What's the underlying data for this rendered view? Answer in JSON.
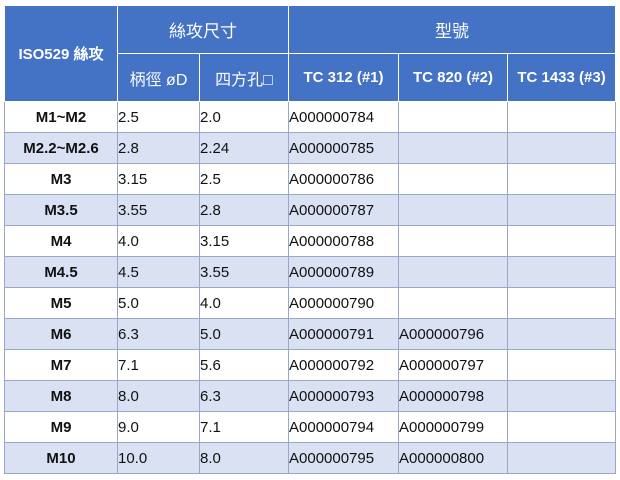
{
  "header": {
    "iso_label": "ISO529 絲攻",
    "tap_size_label": "絲攻尺寸",
    "model_label": "型號",
    "shank_dia_label": "柄徑 øD",
    "square_label": "四方孔□",
    "model_cols": [
      "TC 312 (#1)",
      "TC 820 (#2)",
      "TC 1433 (#3)"
    ]
  },
  "rows": [
    {
      "thread": "M1~M2",
      "shank": "2.5",
      "square": "2.0",
      "tc312": "A000000784",
      "tc820": "",
      "tc1433": ""
    },
    {
      "thread": "M2.2~M2.6",
      "shank": "2.8",
      "square": "2.24",
      "tc312": "A000000785",
      "tc820": "",
      "tc1433": ""
    },
    {
      "thread": "M3",
      "shank": "3.15",
      "square": "2.5",
      "tc312": "A000000786",
      "tc820": "",
      "tc1433": ""
    },
    {
      "thread": "M3.5",
      "shank": "3.55",
      "square": "2.8",
      "tc312": "A000000787",
      "tc820": "",
      "tc1433": ""
    },
    {
      "thread": "M4",
      "shank": "4.0",
      "square": "3.15",
      "tc312": "A000000788",
      "tc820": "",
      "tc1433": ""
    },
    {
      "thread": "M4.5",
      "shank": "4.5",
      "square": "3.55",
      "tc312": "A000000789",
      "tc820": "",
      "tc1433": ""
    },
    {
      "thread": "M5",
      "shank": "5.0",
      "square": "4.0",
      "tc312": "A000000790",
      "tc820": "",
      "tc1433": ""
    },
    {
      "thread": "M6",
      "shank": "6.3",
      "square": "5.0",
      "tc312": "A000000791",
      "tc820": "A000000796",
      "tc1433": ""
    },
    {
      "thread": "M7",
      "shank": "7.1",
      "square": "5.6",
      "tc312": "A000000792",
      "tc820": "A000000797",
      "tc1433": ""
    },
    {
      "thread": "M8",
      "shank": "8.0",
      "square": "6.3",
      "tc312": "A000000793",
      "tc820": "A000000798",
      "tc1433": ""
    },
    {
      "thread": "M9",
      "shank": "9.0",
      "square": "7.1",
      "tc312": "A000000794",
      "tc820": "A000000799",
      "tc1433": ""
    },
    {
      "thread": "M10",
      "shank": "10.0",
      "square": "8.0",
      "tc312": "A000000795",
      "tc820": "A000000800",
      "tc1433": ""
    }
  ]
}
